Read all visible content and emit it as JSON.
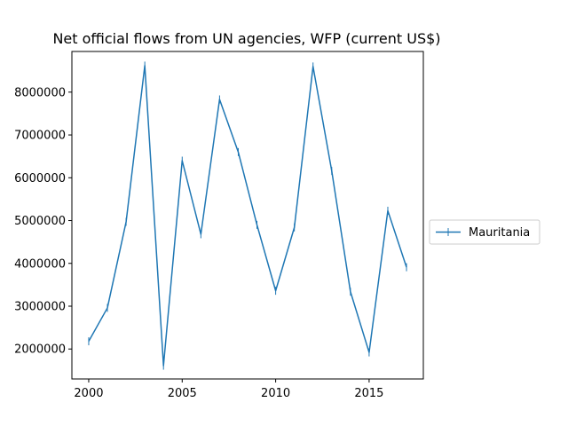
{
  "chart_data": {
    "type": "line",
    "title": "Net official flows from UN agencies, WFP (current US$)",
    "xlabel": "",
    "ylabel": "",
    "xlim": [
      1999.1,
      2017.9
    ],
    "ylim": [
      1300000,
      8950000
    ],
    "xticks": [
      2000,
      2005,
      2010,
      2015
    ],
    "yticks": [
      2000000,
      3000000,
      4000000,
      5000000,
      6000000,
      7000000,
      8000000
    ],
    "grid": false,
    "legend_position": "right",
    "series": [
      {
        "name": "Mauritania",
        "color": "#1f77b4",
        "x": [
          2000,
          2001,
          2002,
          2003,
          2004,
          2005,
          2006,
          2007,
          2008,
          2009,
          2010,
          2011,
          2012,
          2013,
          2014,
          2015,
          2016,
          2017
        ],
        "y": [
          2180000,
          2960000,
          4970000,
          8620000,
          1610000,
          6400000,
          4680000,
          7830000,
          6600000,
          4900000,
          3360000,
          4840000,
          8600000,
          6160000,
          3340000,
          1920000,
          5230000,
          3910000
        ]
      }
    ]
  }
}
